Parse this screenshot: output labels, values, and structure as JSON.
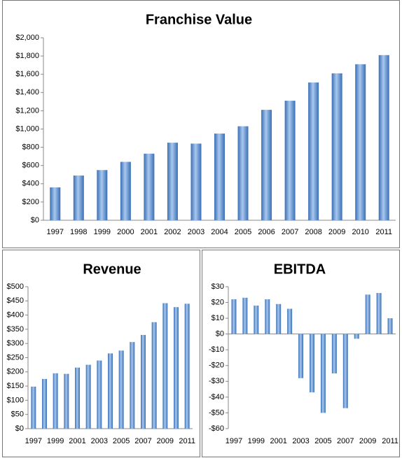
{
  "chart_data": [
    {
      "type": "bar",
      "title": "Franchise Value",
      "color": "#3a6fb5",
      "categories": [
        "1997",
        "1998",
        "1999",
        "2000",
        "2001",
        "2002",
        "2003",
        "2004",
        "2005",
        "2006",
        "2007",
        "2008",
        "2009",
        "2010",
        "2011"
      ],
      "values": [
        360,
        490,
        550,
        640,
        730,
        850,
        840,
        950,
        1030,
        1210,
        1310,
        1510,
        1610,
        1710,
        1810
      ],
      "ylim": [
        0,
        2000
      ],
      "yticks": [
        {
          "value": 0,
          "label": "$0"
        },
        {
          "value": 200,
          "label": "$200"
        },
        {
          "value": 400,
          "label": "$400"
        },
        {
          "value": 600,
          "label": "$600"
        },
        {
          "value": 800,
          "label": "$800"
        },
        {
          "value": 1000,
          "label": "$1,000"
        },
        {
          "value": 1200,
          "label": "$1,200"
        },
        {
          "value": 1400,
          "label": "$1,400"
        },
        {
          "value": 1600,
          "label": "$1,600"
        },
        {
          "value": 1800,
          "label": "$1,800"
        },
        {
          "value": 2000,
          "label": "$2,000"
        }
      ]
    },
    {
      "type": "bar",
      "title": "Revenue",
      "color": "#3a6fb5",
      "categories": [
        "1997",
        null,
        "1999",
        null,
        "2001",
        null,
        "2003",
        null,
        "2005",
        null,
        "2007",
        null,
        "2009",
        null,
        "2011"
      ],
      "values": [
        148,
        175,
        195,
        193,
        215,
        225,
        240,
        265,
        275,
        305,
        330,
        375,
        442,
        428,
        440
      ],
      "ylim": [
        0,
        500
      ],
      "yticks": [
        {
          "value": 0,
          "label": "$0"
        },
        {
          "value": 50,
          "label": "$50"
        },
        {
          "value": 100,
          "label": "$100"
        },
        {
          "value": 150,
          "label": "$150"
        },
        {
          "value": 200,
          "label": "$200"
        },
        {
          "value": 250,
          "label": "$250"
        },
        {
          "value": 300,
          "label": "$300"
        },
        {
          "value": 350,
          "label": "$350"
        },
        {
          "value": 400,
          "label": "$400"
        },
        {
          "value": 450,
          "label": "$450"
        },
        {
          "value": 500,
          "label": "$500"
        }
      ]
    },
    {
      "type": "bar",
      "title": "EBITDA",
      "color": "#3a6fb5",
      "categories": [
        "1997",
        null,
        "1999",
        null,
        "2001",
        null,
        "2003",
        null,
        "2005",
        null,
        "2007",
        null,
        "2009",
        null,
        "2011"
      ],
      "values": [
        22,
        23,
        18,
        22,
        19,
        16,
        -28,
        -37,
        -50,
        -25,
        -47,
        -3,
        25,
        26,
        10
      ],
      "ylim": [
        -60,
        30
      ],
      "yticks": [
        {
          "value": -60,
          "label": "-$60"
        },
        {
          "value": -50,
          "label": "-$50"
        },
        {
          "value": -40,
          "label": "-$40"
        },
        {
          "value": -30,
          "label": "-$30"
        },
        {
          "value": -20,
          "label": "-$20"
        },
        {
          "value": -10,
          "label": "-$10"
        },
        {
          "value": 0,
          "label": "$0"
        },
        {
          "value": 10,
          "label": "$10"
        },
        {
          "value": 20,
          "label": "$20"
        },
        {
          "value": 30,
          "label": "$30"
        }
      ]
    }
  ]
}
